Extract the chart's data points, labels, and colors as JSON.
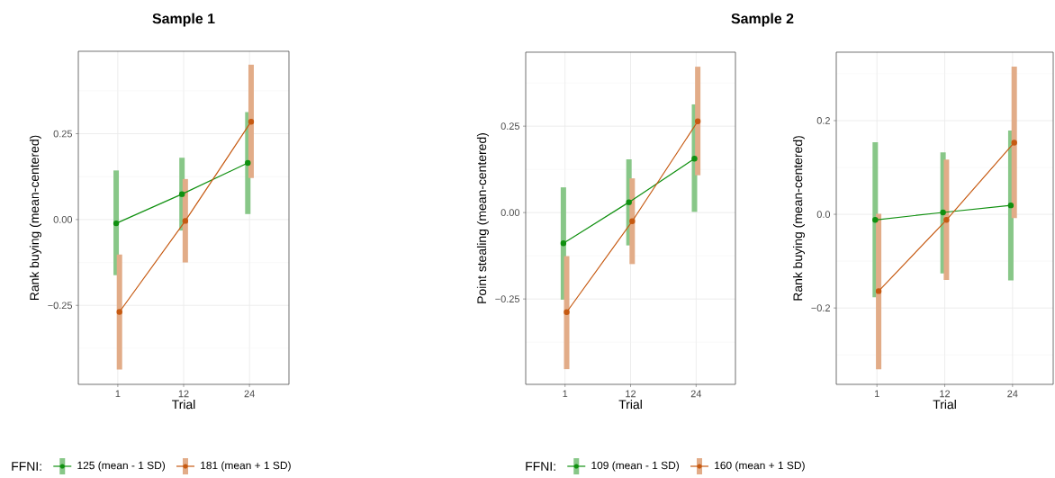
{
  "chart_data": [
    {
      "type": "line",
      "title": "Sample 1",
      "categories": [
        "1",
        "12",
        "24"
      ],
      "xlabel": "Trial",
      "ylabel": "Rank buying (mean-centered)",
      "ylim": [
        -0.48,
        0.49
      ],
      "yticks": [
        {
          "value": -0.25,
          "label": "−0.25"
        },
        {
          "value": 0,
          "label": "0.00"
        },
        {
          "value": 0.25,
          "label": "0.25"
        }
      ],
      "grid": true,
      "marker": "circle",
      "line_style": "solid",
      "legend": "bottom",
      "legend_title": "FFNI:",
      "series": [
        {
          "name": "125 (mean - 1 SD)",
          "color": "#109010",
          "values": [
            -0.011,
            0.074,
            0.165
          ],
          "errors": [
            [
              -0.162,
              0.143
            ],
            [
              -0.032,
              0.18
            ],
            [
              0.016,
              0.313
            ]
          ]
        },
        {
          "name": "181 (mean + 1 SD)",
          "color": "#c65a12",
          "values": [
            -0.269,
            -0.004,
            0.285
          ],
          "errors": [
            [
              -0.437,
              -0.102
            ],
            [
              -0.125,
              0.118
            ],
            [
              0.121,
              0.451
            ]
          ]
        }
      ]
    },
    {
      "type": "line",
      "title": "Sample 2",
      "categories": [
        "1",
        "12",
        "24"
      ],
      "xlabel": "Trial",
      "ylabel": "Point stealing (mean-centered)",
      "ylim": [
        -0.497,
        0.464
      ],
      "yticks": [
        {
          "value": -0.25,
          "label": "−0.25"
        },
        {
          "value": 0,
          "label": "0.00"
        },
        {
          "value": 0.25,
          "label": "0.25"
        }
      ],
      "grid": true,
      "marker": "circle",
      "line_style": "solid",
      "legend": "bottom",
      "legend_title": "FFNI:",
      "series": [
        {
          "name": "109 (mean - 1 SD)",
          "color": "#109010",
          "values": [
            -0.089,
            0.03,
            0.156
          ],
          "errors": [
            [
              -0.252,
              0.073
            ],
            [
              -0.095,
              0.154
            ],
            [
              0.002,
              0.313
            ]
          ]
        },
        {
          "name": "160 (mean + 1 SD)",
          "color": "#c65a12",
          "values": [
            -0.288,
            -0.025,
            0.264
          ],
          "errors": [
            [
              -0.453,
              -0.126
            ],
            [
              -0.149,
              0.099
            ],
            [
              0.108,
              0.422
            ]
          ]
        }
      ]
    },
    {
      "type": "line",
      "categories": [
        "1",
        "12",
        "24"
      ],
      "xlabel": "Trial",
      "ylabel": "Rank buying (mean-centered)",
      "ylim": [
        -0.363,
        0.346
      ],
      "yticks": [
        {
          "value": -0.2,
          "label": "−0.2"
        },
        {
          "value": 0,
          "label": "0.0"
        },
        {
          "value": 0.2,
          "label": "0.2"
        }
      ],
      "grid": true,
      "marker": "circle",
      "line_style": "solid",
      "series": [
        {
          "color": "#109010",
          "values": [
            -0.012,
            0.004,
            0.019
          ],
          "errors": [
            [
              -0.177,
              0.154
            ],
            [
              -0.126,
              0.132
            ],
            [
              -0.141,
              0.179
            ]
          ]
        },
        {
          "color": "#c65a12",
          "values": [
            -0.164,
            -0.012,
            0.153
          ],
          "errors": [
            [
              -0.331,
              0.001
            ],
            [
              -0.14,
              0.117
            ],
            [
              -0.008,
              0.315
            ]
          ]
        }
      ]
    }
  ]
}
